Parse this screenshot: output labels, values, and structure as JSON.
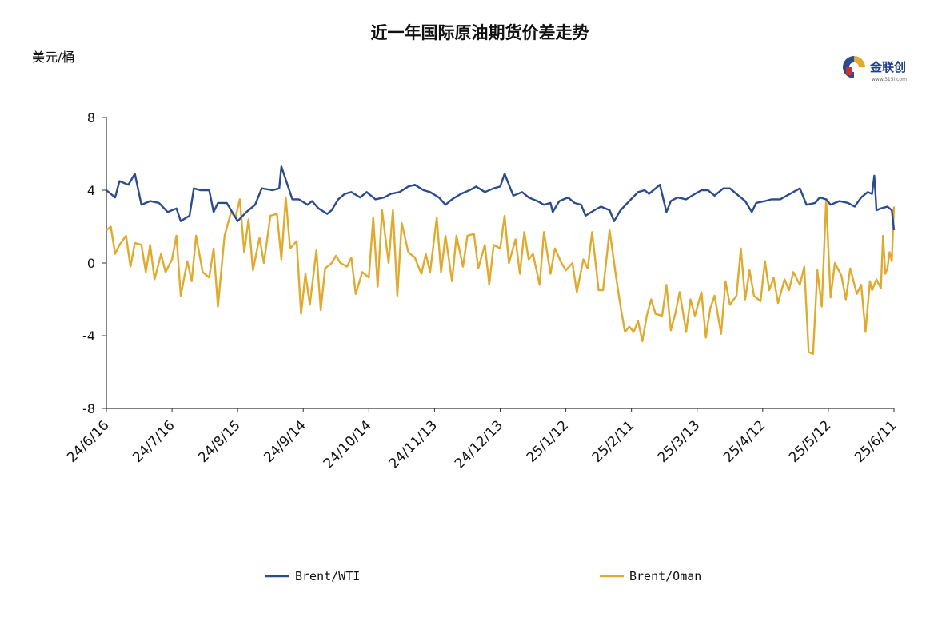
{
  "colors": {
    "series1": "#2b4c8c",
    "series2": "#e0aa2f",
    "axis": "#333333"
  },
  "logo": {
    "text": "金联创",
    "sub": "www.315i.com",
    "icon": "jlc-logo-icon"
  },
  "chart_data": {
    "type": "line",
    "title": "近一年国际原油期货价差走势",
    "ylabel": "美元/桶",
    "ylim": [
      -8,
      8
    ],
    "yticks": [
      -8,
      -4,
      0,
      4,
      8
    ],
    "xlim": [
      "2024-06-16",
      "2025-06-11"
    ],
    "xtick_labels": [
      "24/6/16",
      "24/7/16",
      "24/8/15",
      "24/9/14",
      "24/10/14",
      "24/11/13",
      "24/12/13",
      "25/1/12",
      "25/2/11",
      "25/3/13",
      "25/4/12",
      "25/5/12",
      "25/6/11"
    ],
    "legend_position": "bottom",
    "grid": false,
    "series": [
      {
        "name": "Brent/WTI",
        "points": [
          [
            "2024-06-16",
            4.0
          ],
          [
            "2024-06-20",
            3.6
          ],
          [
            "2024-06-22",
            4.5
          ],
          [
            "2024-06-26",
            4.3
          ],
          [
            "2024-06-29",
            4.9
          ],
          [
            "2024-07-02",
            3.2
          ],
          [
            "2024-07-06",
            3.4
          ],
          [
            "2024-07-10",
            3.3
          ],
          [
            "2024-07-14",
            2.8
          ],
          [
            "2024-07-18",
            3.0
          ],
          [
            "2024-07-20",
            2.3
          ],
          [
            "2024-07-24",
            2.6
          ],
          [
            "2024-07-26",
            4.1
          ],
          [
            "2024-07-29",
            4.0
          ],
          [
            "2024-08-02",
            4.0
          ],
          [
            "2024-08-04",
            2.8
          ],
          [
            "2024-08-06",
            3.3
          ],
          [
            "2024-08-10",
            3.3
          ],
          [
            "2024-08-15",
            2.3
          ],
          [
            "2024-08-19",
            2.8
          ],
          [
            "2024-08-23",
            3.2
          ],
          [
            "2024-08-26",
            4.1
          ],
          [
            "2024-08-31",
            4.0
          ],
          [
            "2024-09-03",
            4.1
          ],
          [
            "2024-09-04",
            5.3
          ],
          [
            "2024-09-09",
            3.5
          ],
          [
            "2024-09-12",
            3.5
          ],
          [
            "2024-09-16",
            3.2
          ],
          [
            "2024-09-18",
            3.4
          ],
          [
            "2024-09-21",
            3.0
          ],
          [
            "2024-09-25",
            2.7
          ],
          [
            "2024-09-27",
            2.9
          ],
          [
            "2024-09-30",
            3.5
          ],
          [
            "2024-10-03",
            3.8
          ],
          [
            "2024-10-06",
            3.9
          ],
          [
            "2024-10-10",
            3.6
          ],
          [
            "2024-10-13",
            3.9
          ],
          [
            "2024-10-17",
            3.5
          ],
          [
            "2024-10-21",
            3.6
          ],
          [
            "2024-10-24",
            3.8
          ],
          [
            "2024-10-28",
            3.9
          ],
          [
            "2024-11-01",
            4.2
          ],
          [
            "2024-11-04",
            4.3
          ],
          [
            "2024-11-08",
            4.0
          ],
          [
            "2024-11-11",
            3.9
          ],
          [
            "2024-11-15",
            3.6
          ],
          [
            "2024-11-18",
            3.2
          ],
          [
            "2024-11-21",
            3.5
          ],
          [
            "2024-11-25",
            3.8
          ],
          [
            "2024-11-29",
            4.0
          ],
          [
            "2024-12-02",
            4.2
          ],
          [
            "2024-12-06",
            3.9
          ],
          [
            "2024-12-10",
            4.1
          ],
          [
            "2024-12-13",
            4.2
          ],
          [
            "2024-12-15",
            4.9
          ],
          [
            "2024-12-19",
            3.7
          ],
          [
            "2024-12-23",
            3.9
          ],
          [
            "2024-12-26",
            3.6
          ],
          [
            "2024-12-30",
            3.4
          ],
          [
            "2025-01-02",
            3.2
          ],
          [
            "2025-01-05",
            3.3
          ],
          [
            "2025-01-06",
            2.8
          ],
          [
            "2025-01-09",
            3.4
          ],
          [
            "2025-01-13",
            3.6
          ],
          [
            "2025-01-16",
            3.3
          ],
          [
            "2025-01-19",
            3.2
          ],
          [
            "2025-01-21",
            2.6
          ],
          [
            "2025-01-25",
            2.9
          ],
          [
            "2025-01-28",
            3.1
          ],
          [
            "2025-02-01",
            2.9
          ],
          [
            "2025-02-03",
            2.3
          ],
          [
            "2025-02-06",
            2.9
          ],
          [
            "2025-02-10",
            3.4
          ],
          [
            "2025-02-14",
            3.9
          ],
          [
            "2025-02-17",
            4.0
          ],
          [
            "2025-02-19",
            3.8
          ],
          [
            "2025-02-24",
            4.3
          ],
          [
            "2025-02-27",
            2.8
          ],
          [
            "2025-03-01",
            3.4
          ],
          [
            "2025-03-04",
            3.6
          ],
          [
            "2025-03-08",
            3.5
          ],
          [
            "2025-03-12",
            3.8
          ],
          [
            "2025-03-15",
            4.0
          ],
          [
            "2025-03-18",
            4.0
          ],
          [
            "2025-03-21",
            3.7
          ],
          [
            "2025-03-25",
            4.1
          ],
          [
            "2025-03-28",
            4.1
          ],
          [
            "2025-04-01",
            3.7
          ],
          [
            "2025-04-04",
            3.4
          ],
          [
            "2025-04-07",
            2.8
          ],
          [
            "2025-04-09",
            3.3
          ],
          [
            "2025-04-13",
            3.4
          ],
          [
            "2025-04-16",
            3.5
          ],
          [
            "2025-04-20",
            3.5
          ],
          [
            "2025-04-23",
            3.7
          ],
          [
            "2025-04-26",
            3.9
          ],
          [
            "2025-04-29",
            4.1
          ],
          [
            "2025-05-02",
            3.2
          ],
          [
            "2025-05-06",
            3.3
          ],
          [
            "2025-05-08",
            3.6
          ],
          [
            "2025-05-11",
            3.5
          ],
          [
            "2025-05-13",
            3.2
          ],
          [
            "2025-05-17",
            3.4
          ],
          [
            "2025-05-21",
            3.3
          ],
          [
            "2025-05-24",
            3.1
          ],
          [
            "2025-05-27",
            3.6
          ],
          [
            "2025-05-30",
            3.9
          ],
          [
            "2025-06-01",
            3.8
          ],
          [
            "2025-06-02",
            4.8
          ],
          [
            "2025-06-03",
            2.9
          ],
          [
            "2025-06-05",
            3.0
          ],
          [
            "2025-06-08",
            3.1
          ],
          [
            "2025-06-10",
            2.9
          ],
          [
            "2025-06-11",
            1.8
          ]
        ]
      },
      {
        "name": "Brent/Oman",
        "points": [
          [
            "2024-06-16",
            1.8
          ],
          [
            "2024-06-18",
            2.0
          ],
          [
            "2024-06-20",
            0.5
          ],
          [
            "2024-06-22",
            1.0
          ],
          [
            "2024-06-25",
            1.5
          ],
          [
            "2024-06-27",
            -0.2
          ],
          [
            "2024-06-29",
            1.1
          ],
          [
            "2024-07-02",
            1.0
          ],
          [
            "2024-07-04",
            -0.5
          ],
          [
            "2024-07-06",
            1.0
          ],
          [
            "2024-07-08",
            -0.9
          ],
          [
            "2024-07-11",
            0.5
          ],
          [
            "2024-07-13",
            -0.5
          ],
          [
            "2024-07-16",
            0.2
          ],
          [
            "2024-07-18",
            1.5
          ],
          [
            "2024-07-20",
            -1.8
          ],
          [
            "2024-07-23",
            0.1
          ],
          [
            "2024-07-25",
            -1.0
          ],
          [
            "2024-07-27",
            1.5
          ],
          [
            "2024-07-30",
            -0.5
          ],
          [
            "2024-08-02",
            -0.8
          ],
          [
            "2024-08-04",
            0.8
          ],
          [
            "2024-08-06",
            -2.4
          ],
          [
            "2024-08-09",
            1.5
          ],
          [
            "2024-08-12",
            2.8
          ],
          [
            "2024-08-14",
            2.5
          ],
          [
            "2024-08-16",
            3.5
          ],
          [
            "2024-08-18",
            0.6
          ],
          [
            "2024-08-20",
            2.4
          ],
          [
            "2024-08-22",
            -0.4
          ],
          [
            "2024-08-25",
            1.4
          ],
          [
            "2024-08-27",
            0.0
          ],
          [
            "2024-08-30",
            2.6
          ],
          [
            "2024-09-02",
            2.7
          ],
          [
            "2024-09-04",
            0.2
          ],
          [
            "2024-09-06",
            3.6
          ],
          [
            "2024-09-08",
            0.8
          ],
          [
            "2024-09-11",
            1.2
          ],
          [
            "2024-09-13",
            -2.8
          ],
          [
            "2024-09-15",
            -0.6
          ],
          [
            "2024-09-17",
            -2.3
          ],
          [
            "2024-09-20",
            0.7
          ],
          [
            "2024-09-22",
            -2.6
          ],
          [
            "2024-09-24",
            -0.3
          ],
          [
            "2024-09-27",
            0.0
          ],
          [
            "2024-09-29",
            0.4
          ],
          [
            "2024-10-01",
            0.0
          ],
          [
            "2024-10-04",
            -0.2
          ],
          [
            "2024-10-06",
            0.3
          ],
          [
            "2024-10-08",
            -1.7
          ],
          [
            "2024-10-11",
            -0.5
          ],
          [
            "2024-10-14",
            -0.8
          ],
          [
            "2024-10-16",
            2.5
          ],
          [
            "2024-10-18",
            -1.3
          ],
          [
            "2024-10-20",
            2.9
          ],
          [
            "2024-10-23",
            0.0
          ],
          [
            "2024-10-25",
            2.9
          ],
          [
            "2024-10-27",
            -1.8
          ],
          [
            "2024-10-29",
            2.2
          ],
          [
            "2024-11-01",
            0.6
          ],
          [
            "2024-11-04",
            0.3
          ],
          [
            "2024-11-07",
            -0.6
          ],
          [
            "2024-11-09",
            0.5
          ],
          [
            "2024-11-11",
            -0.5
          ],
          [
            "2024-11-14",
            2.5
          ],
          [
            "2024-11-16",
            -0.5
          ],
          [
            "2024-11-18",
            1.5
          ],
          [
            "2024-11-21",
            -1.0
          ],
          [
            "2024-11-23",
            1.5
          ],
          [
            "2024-11-26",
            -0.2
          ],
          [
            "2024-11-28",
            1.5
          ],
          [
            "2024-12-01",
            1.6
          ],
          [
            "2024-12-03",
            -0.3
          ],
          [
            "2024-12-06",
            1.0
          ],
          [
            "2024-12-08",
            -1.2
          ],
          [
            "2024-12-10",
            1.0
          ],
          [
            "2024-12-13",
            0.8
          ],
          [
            "2024-12-15",
            2.6
          ],
          [
            "2024-12-17",
            0.0
          ],
          [
            "2024-12-20",
            1.3
          ],
          [
            "2024-12-22",
            -0.6
          ],
          [
            "2024-12-24",
            1.7
          ],
          [
            "2024-12-26",
            0.2
          ],
          [
            "2024-12-28",
            0.5
          ],
          [
            "2024-12-31",
            -1.2
          ],
          [
            "2025-01-02",
            1.7
          ],
          [
            "2025-01-05",
            -0.6
          ],
          [
            "2025-01-07",
            0.8
          ],
          [
            "2025-01-10",
            0.0
          ],
          [
            "2025-01-12",
            -0.4
          ],
          [
            "2025-01-15",
            0.0
          ],
          [
            "2025-01-17",
            -1.6
          ],
          [
            "2025-01-20",
            0.2
          ],
          [
            "2025-01-22",
            -0.3
          ],
          [
            "2025-01-24",
            1.7
          ],
          [
            "2025-01-27",
            -1.5
          ],
          [
            "2025-01-29",
            -1.5
          ],
          [
            "2025-02-01",
            1.8
          ],
          [
            "2025-02-04",
            -0.8
          ],
          [
            "2025-02-06",
            -2.4
          ],
          [
            "2025-02-08",
            -3.8
          ],
          [
            "2025-02-10",
            -3.5
          ],
          [
            "2025-02-12",
            -3.8
          ],
          [
            "2025-02-14",
            -3.2
          ],
          [
            "2025-02-16",
            -4.3
          ],
          [
            "2025-02-18",
            -2.9
          ],
          [
            "2025-02-20",
            -2.0
          ],
          [
            "2025-02-22",
            -2.8
          ],
          [
            "2025-02-25",
            -2.9
          ],
          [
            "2025-02-27",
            -1.2
          ],
          [
            "2025-03-01",
            -3.7
          ],
          [
            "2025-03-03",
            -2.8
          ],
          [
            "2025-03-05",
            -1.6
          ],
          [
            "2025-03-08",
            -3.8
          ],
          [
            "2025-03-10",
            -2.0
          ],
          [
            "2025-03-12",
            -2.9
          ],
          [
            "2025-03-15",
            -1.6
          ],
          [
            "2025-03-17",
            -4.1
          ],
          [
            "2025-03-19",
            -2.5
          ],
          [
            "2025-03-21",
            -1.8
          ],
          [
            "2025-03-24",
            -3.9
          ],
          [
            "2025-03-26",
            -1.0
          ],
          [
            "2025-03-28",
            -2.3
          ],
          [
            "2025-03-31",
            -1.8
          ],
          [
            "2025-04-02",
            0.8
          ],
          [
            "2025-04-04",
            -2.0
          ],
          [
            "2025-04-06",
            -0.4
          ],
          [
            "2025-04-08",
            -1.8
          ],
          [
            "2025-04-11",
            -2.1
          ],
          [
            "2025-04-13",
            0.1
          ],
          [
            "2025-04-15",
            -1.5
          ],
          [
            "2025-04-17",
            -0.8
          ],
          [
            "2025-04-19",
            -2.2
          ],
          [
            "2025-04-22",
            -0.9
          ],
          [
            "2025-04-24",
            -1.5
          ],
          [
            "2025-04-26",
            -0.5
          ],
          [
            "2025-04-29",
            -1.2
          ],
          [
            "2025-05-01",
            -0.2
          ],
          [
            "2025-05-03",
            -4.9
          ],
          [
            "2025-05-05",
            -5.0
          ],
          [
            "2025-05-07",
            -0.4
          ],
          [
            "2025-05-09",
            -2.4
          ],
          [
            "2025-05-11",
            3.5
          ],
          [
            "2025-05-13",
            -1.9
          ],
          [
            "2025-05-15",
            0.0
          ],
          [
            "2025-05-18",
            -0.7
          ],
          [
            "2025-05-20",
            -2.0
          ],
          [
            "2025-05-22",
            -0.3
          ],
          [
            "2025-05-25",
            -1.7
          ],
          [
            "2025-05-27",
            -1.2
          ],
          [
            "2025-05-29",
            -3.8
          ],
          [
            "2025-05-31",
            -1.0
          ],
          [
            "2025-06-01",
            -1.5
          ],
          [
            "2025-06-03",
            -0.9
          ],
          [
            "2025-06-05",
            -1.4
          ],
          [
            "2025-06-06",
            1.5
          ],
          [
            "2025-06-07",
            -0.6
          ],
          [
            "2025-06-08",
            -0.3
          ],
          [
            "2025-06-09",
            0.6
          ],
          [
            "2025-06-10",
            0.1
          ],
          [
            "2025-06-11",
            3.1
          ]
        ]
      }
    ]
  }
}
